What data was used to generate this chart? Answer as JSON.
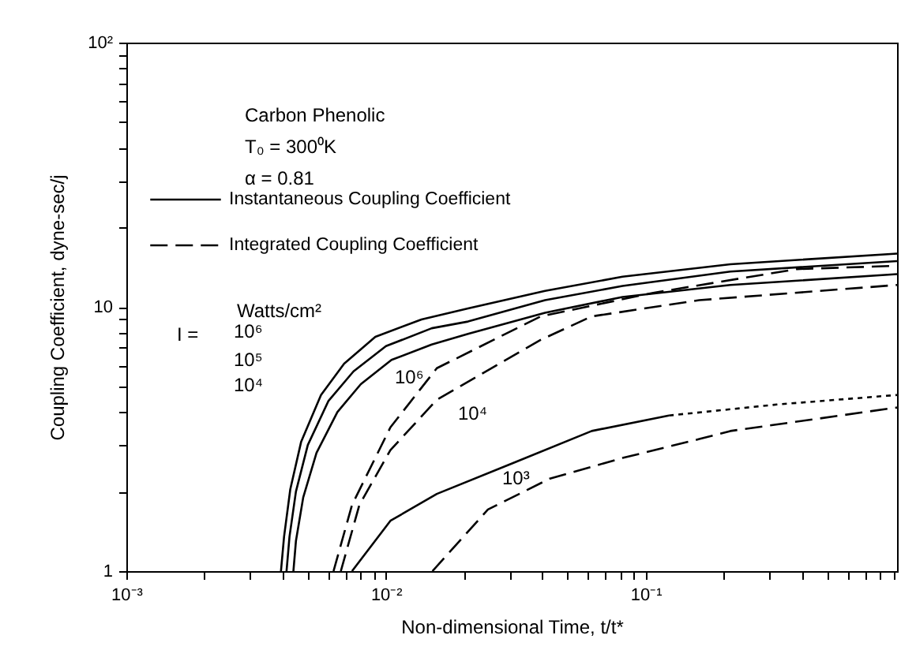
{
  "chart_data": {
    "type": "line",
    "xlabel": "Non-dimensional Time, t/t*",
    "ylabel": "Coupling Coefficient, dyne-sec/j",
    "log": "xy",
    "xlim": [
      0.001,
      0.93
    ],
    "ylim": [
      1,
      100
    ],
    "xticks": [
      {
        "value": 0.001,
        "label": "10⁻³"
      },
      {
        "value": 0.002,
        "label": null
      },
      {
        "value": 0.003,
        "label": null
      },
      {
        "value": 0.004,
        "label": null
      },
      {
        "value": 0.005,
        "label": null
      },
      {
        "value": 0.006,
        "label": null
      },
      {
        "value": 0.007,
        "label": null
      },
      {
        "value": 0.008,
        "label": null
      },
      {
        "value": 0.009,
        "label": null
      },
      {
        "value": 0.01,
        "label": "10⁻²"
      },
      {
        "value": 0.02,
        "label": null
      },
      {
        "value": 0.03,
        "label": null
      },
      {
        "value": 0.04,
        "label": null
      },
      {
        "value": 0.05,
        "label": null
      },
      {
        "value": 0.06,
        "label": null
      },
      {
        "value": 0.07,
        "label": null
      },
      {
        "value": 0.08,
        "label": null
      },
      {
        "value": 0.09,
        "label": null
      },
      {
        "value": 0.1,
        "label": "10⁻¹"
      },
      {
        "value": 0.2,
        "label": null
      },
      {
        "value": 0.3,
        "label": null
      },
      {
        "value": 0.4,
        "label": null
      },
      {
        "value": 0.5,
        "label": null
      },
      {
        "value": 0.6,
        "label": null
      },
      {
        "value": 0.7,
        "label": null
      },
      {
        "value": 0.8,
        "label": null
      },
      {
        "value": 0.9,
        "label": null
      }
    ],
    "yticks": [
      1,
      {
        "value": 2,
        "label": null
      },
      {
        "value": 3,
        "label": null
      },
      {
        "value": 4,
        "label": null
      },
      {
        "value": 5,
        "label": null
      },
      {
        "value": 6,
        "label": null
      },
      {
        "value": 7,
        "label": null
      },
      {
        "value": 8,
        "label": null
      },
      {
        "value": 9,
        "label": null
      },
      10,
      {
        "value": 20,
        "label": null
      },
      {
        "value": 30,
        "label": null
      },
      {
        "value": 40,
        "label": null
      },
      {
        "value": 50,
        "label": null
      },
      {
        "value": 60,
        "label": null
      },
      {
        "value": 70,
        "label": null
      },
      {
        "value": 80,
        "label": null
      },
      {
        "value": 90,
        "label": null
      },
      {
        "value": 100,
        "label": "10²"
      }
    ],
    "grid": false,
    "legend": "top left",
    "series": [
      {
        "name": "Instantaneous Coupling Coefficient",
        "color": "#000000",
        "line_style": "solid",
        "x": [
          0.00394,
          0.00405,
          0.00428,
          0.00471,
          0.00562,
          0.0069,
          0.0091,
          0.0137,
          0.0207,
          0.041,
          0.0815,
          0.212,
          0.93
        ],
        "values": [
          1,
          1.35,
          2.04,
          3.08,
          4.64,
          6.1,
          7.7,
          8.96,
          9.86,
          11.5,
          13.0,
          14.5,
          15.9
        ]
      },
      {
        "color": "#000000",
        "line_style": "solid",
        "x": [
          0.00414,
          0.00425,
          0.0045,
          0.005,
          0.006,
          0.0075,
          0.01,
          0.015,
          0.0207,
          0.041,
          0.0815,
          0.212,
          0.93
        ],
        "values": [
          1,
          1.35,
          2.0,
          3.0,
          4.4,
          5.7,
          7.1,
          8.3,
          8.8,
          10.6,
          12.0,
          13.6,
          14.9
        ]
      },
      {
        "color": "#000000",
        "line_style": "solid",
        "x": [
          0.0044,
          0.0045,
          0.0048,
          0.0054,
          0.0065,
          0.008,
          0.0105,
          0.015,
          0.0207,
          0.041,
          0.0815,
          0.212,
          0.93
        ],
        "values": [
          1,
          1.3,
          1.9,
          2.8,
          4.0,
          5.1,
          6.3,
          7.2,
          7.9,
          9.5,
          10.9,
          12.1,
          13.3
        ]
      },
      {
        "name": "Integrated Coupling Coefficient",
        "color": "#000000",
        "line_style": "dashed",
        "x": [
          0.00628,
          0.0074,
          0.0104,
          0.0157,
          0.0394,
          0.107,
          0.383,
          0.93
        ],
        "values": [
          1,
          1.78,
          3.5,
          5.86,
          9.2,
          11.3,
          13.9,
          14.3
        ]
      },
      {
        "color": "#000000",
        "line_style": "dashed",
        "x": [
          0.0067,
          0.0079,
          0.0104,
          0.0157,
          0.0394,
          0.062,
          0.161,
          0.93
        ],
        "values": [
          1,
          1.78,
          2.87,
          4.45,
          7.5,
          9.2,
          10.6,
          12.1
        ]
      },
      {
        "color": "#000000",
        "line_style": "solid",
        "x": [
          0.0074,
          0.0104,
          0.0157,
          0.031,
          0.062,
          0.123
        ],
        "values": [
          1,
          1.55,
          1.96,
          2.57,
          3.39,
          3.88
        ]
      },
      {
        "color": "#000000",
        "line_style": "dotted",
        "x": [
          0.123,
          0.32,
          0.93
        ],
        "values": [
          3.88,
          4.27,
          4.64
        ]
      },
      {
        "color": "#000000",
        "line_style": "dashed",
        "x": [
          0.0151,
          0.0247,
          0.0428,
          0.0815,
          0.161,
          0.212,
          0.93
        ],
        "values": [
          1,
          1.71,
          2.24,
          2.68,
          3.16,
          3.39,
          4.16
        ]
      }
    ],
    "annotations": [
      "Carbon Phenolic",
      "T₀ = 300⁰K",
      "α = 0.81",
      "Watts/cm²",
      "I =",
      "10⁶",
      "10⁵",
      "10⁴",
      "10⁶",
      "10⁴",
      "10³"
    ]
  }
}
